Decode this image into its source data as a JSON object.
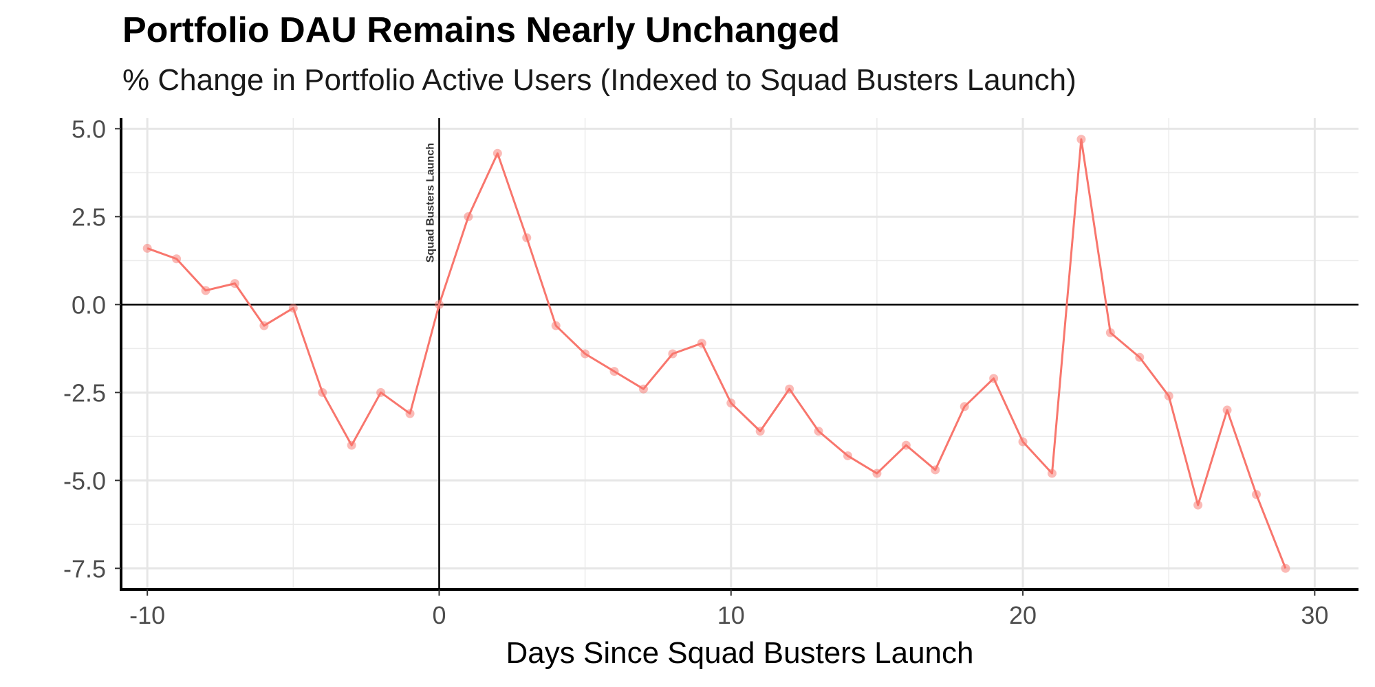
{
  "chart_data": {
    "type": "line",
    "title": "Portfolio DAU Remains Nearly Unchanged",
    "subtitle": "% Change in Portfolio Active Users (Indexed to Squad Busters Launch)",
    "xlabel": "Days Since Squad Busters Launch",
    "ylabel": "",
    "xlim": [
      -10.9,
      31.5
    ],
    "ylim": [
      -8.1,
      5.3
    ],
    "x_ticks": [
      -10,
      0,
      10,
      20,
      30
    ],
    "y_ticks": [
      5.0,
      2.5,
      0.0,
      -2.5,
      -5.0,
      -7.5
    ],
    "x_tick_labels": [
      "-10",
      "0",
      "10",
      "20",
      "30"
    ],
    "y_tick_labels": [
      "5.0",
      "2.5",
      "0.0",
      "-2.5",
      "-5.0",
      "-7.5"
    ],
    "grid": true,
    "reference_lines": {
      "horizontal_at": 0,
      "vertical_at": 0,
      "vertical_label": "Squad Busters Launch"
    },
    "series": [
      {
        "color": "#f8766d",
        "x": [
          -10,
          -9,
          -8,
          -7,
          -6,
          -5,
          -4,
          -3,
          -2,
          -1,
          0,
          1,
          2,
          3,
          4,
          5,
          6,
          7,
          8,
          9,
          10,
          11,
          12,
          13,
          14,
          15,
          16,
          17,
          18,
          19,
          20,
          21,
          22,
          23,
          24,
          25,
          26,
          27,
          28,
          29
        ],
        "y": [
          1.6,
          1.3,
          0.4,
          0.6,
          -0.6,
          -0.1,
          -2.5,
          -4.0,
          -2.5,
          -3.1,
          0.0,
          2.5,
          4.3,
          1.9,
          -0.6,
          -1.4,
          -1.9,
          -2.4,
          -1.4,
          -1.1,
          -2.8,
          -3.6,
          -2.4,
          -3.6,
          -4.3,
          -4.8,
          -4.0,
          -4.7,
          -2.9,
          -2.1,
          -3.9,
          -4.8,
          4.7,
          -0.8,
          -1.5,
          -2.6,
          -5.7,
          -3.0,
          -5.4,
          -7.5
        ]
      }
    ]
  }
}
